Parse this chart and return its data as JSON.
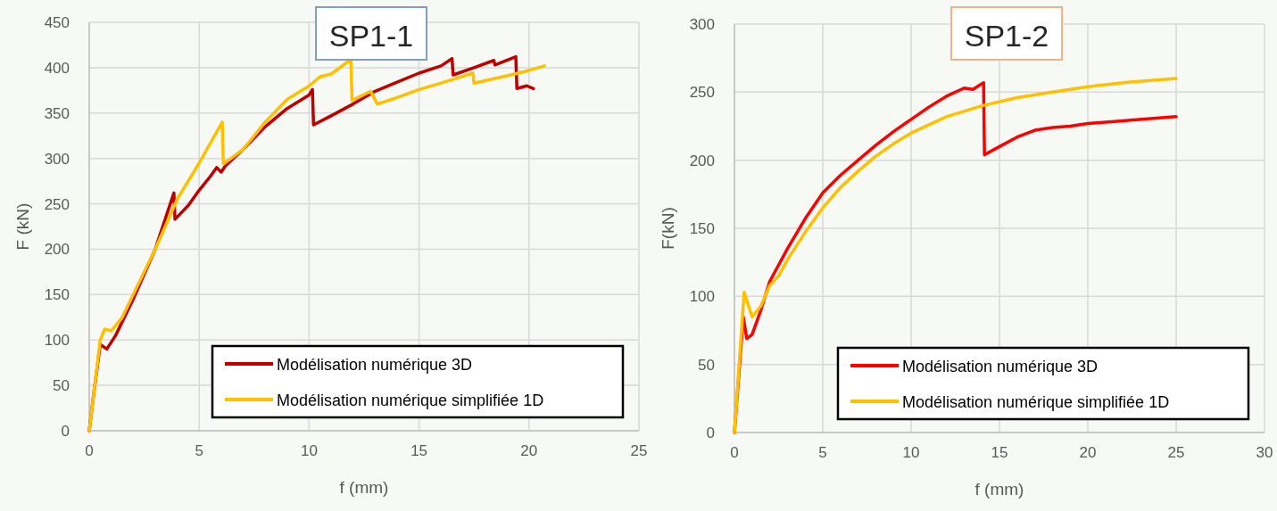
{
  "chart_data": [
    {
      "type": "line",
      "title": "SP1-1",
      "xlabel": "f (mm)",
      "ylabel": "F (kN)",
      "xlim": [
        0,
        25
      ],
      "ylim": [
        0,
        450
      ],
      "xticks": [
        0,
        5,
        10,
        15,
        20,
        25
      ],
      "yticks": [
        0,
        50,
        100,
        150,
        200,
        250,
        300,
        350,
        400,
        450
      ],
      "grid": true,
      "legend": "bottom right",
      "line_style": "solid",
      "marker": "none",
      "series": [
        {
          "name": "Modélisation numérique 3D",
          "color": "#c00000",
          "x": [
            0,
            0.2,
            0.5,
            0.8,
            1.2,
            2,
            3,
            3.85,
            3.9,
            4.5,
            5,
            5.5,
            5.8,
            6,
            6.2,
            7,
            8,
            9,
            10,
            10.15,
            10.2,
            11,
            12,
            13,
            14,
            15,
            16,
            16.5,
            16.55,
            17.5,
            18.4,
            18.45,
            19.4,
            19.45,
            19.9,
            20.2
          ],
          "values": [
            0,
            40,
            95,
            90,
            105,
            145,
            200,
            262,
            233,
            248,
            265,
            280,
            290,
            285,
            292,
            310,
            335,
            355,
            370,
            376,
            337,
            347,
            360,
            374,
            384,
            394,
            402,
            410,
            392,
            400,
            408,
            403,
            412,
            377,
            380,
            377
          ]
        },
        {
          "name": "Modélisation numérique simplifiée 1D",
          "color": "#ffc000",
          "x": [
            0,
            0.3,
            0.5,
            0.7,
            1,
            1.5,
            2,
            3,
            4,
            5,
            6.05,
            6.1,
            7,
            8,
            9,
            10,
            10.5,
            11,
            11.9,
            11.95,
            12.8,
            13.1,
            14,
            15,
            16,
            17.45,
            17.5,
            19,
            20,
            20.7
          ],
          "values": [
            0,
            60,
            100,
            112,
            110,
            125,
            150,
            200,
            255,
            295,
            340,
            294,
            310,
            340,
            365,
            380,
            390,
            393,
            409,
            364,
            374,
            360,
            367,
            376,
            383,
            394,
            383,
            391,
            397,
            402
          ]
        }
      ]
    },
    {
      "type": "line",
      "title": "SP1-2",
      "xlabel": "f (mm)",
      "ylabel": "F(kN)",
      "xlim": [
        0,
        30
      ],
      "ylim": [
        0,
        300
      ],
      "xticks": [
        0,
        5,
        10,
        15,
        20,
        25,
        30
      ],
      "yticks": [
        0,
        50,
        100,
        150,
        200,
        250,
        300
      ],
      "grid": true,
      "legend": "bottom right",
      "line_style": "solid",
      "marker": "none",
      "series": [
        {
          "name": "Modélisation numérique 3D",
          "color": "#ff0000",
          "x": [
            0,
            0.5,
            0.7,
            1,
            1.5,
            2,
            3,
            4,
            5,
            6,
            7,
            8,
            9,
            10,
            11,
            12,
            13,
            13.5,
            14.1,
            14.15,
            15,
            16,
            17,
            18,
            19,
            20,
            22,
            25
          ],
          "values": [
            0,
            85,
            69,
            72,
            90,
            111,
            135,
            157,
            176,
            189,
            200,
            211,
            221,
            230,
            239,
            247,
            253,
            252,
            257,
            204,
            210,
            217,
            222,
            224,
            225,
            227,
            229,
            232
          ]
        },
        {
          "name": "Modélisation numérique simplifiée 1D",
          "color": "#ffc000",
          "x": [
            0,
            0.55,
            1,
            1.5,
            2,
            2.5,
            3,
            4,
            5,
            6,
            7,
            8,
            9,
            10,
            12,
            14,
            16,
            18,
            20,
            22,
            25
          ],
          "values": [
            0,
            103,
            85,
            93,
            108,
            115,
            127,
            147,
            165,
            180,
            192,
            203,
            212,
            220,
            232,
            240,
            246,
            250,
            254,
            257,
            260
          ]
        }
      ]
    }
  ]
}
